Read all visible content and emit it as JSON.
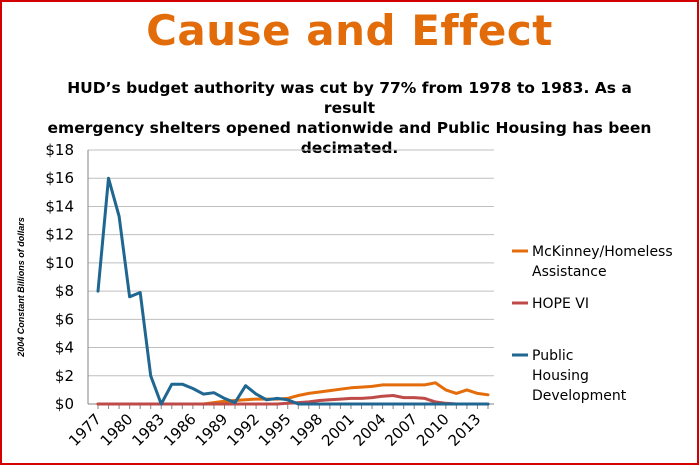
{
  "slide": {
    "title": "Cause and Effect",
    "subtitle_lines": [
      "HUD’s budget authority was cut by 77% from 1978 to 1983.  As a result",
      "emergency shelters opened nationwide and Public Housing has been",
      "decimated."
    ]
  },
  "chart_data": {
    "type": "line",
    "title": "",
    "xlabel": "",
    "ylabel": "2004 Constant Billions of dollars",
    "x": [
      1977,
      1978,
      1979,
      1980,
      1981,
      1982,
      1983,
      1984,
      1985,
      1986,
      1987,
      1988,
      1989,
      1990,
      1991,
      1992,
      1993,
      1994,
      1995,
      1996,
      1997,
      1998,
      1999,
      2000,
      2001,
      2002,
      2003,
      2004,
      2005,
      2006,
      2007,
      2008,
      2009,
      2010,
      2011,
      2012,
      2013,
      2014
    ],
    "xticks": [
      1977,
      1980,
      1983,
      1986,
      1989,
      1992,
      1995,
      1998,
      2001,
      2004,
      2007,
      2010,
      2013
    ],
    "ylim": [
      0,
      18
    ],
    "yticks": [
      0,
      2,
      4,
      6,
      8,
      10,
      12,
      14,
      16,
      18
    ],
    "ytick_labels": [
      "$0",
      "$2",
      "$4",
      "$6",
      "$8",
      "$10",
      "$12",
      "$14",
      "$16",
      "$18"
    ],
    "grid": "horizontal",
    "legend_position": "right",
    "series": [
      {
        "name": "McKinney/Homeless Assistance",
        "legend_lines": [
          "McKinney/Homeless",
          "Assistance"
        ],
        "color": "#e46c0a",
        "values": [
          0,
          0,
          0,
          0,
          0,
          0,
          0,
          0,
          0,
          0,
          0,
          0.1,
          0.2,
          0.25,
          0.3,
          0.35,
          0.35,
          0.35,
          0.4,
          0.6,
          0.75,
          0.85,
          0.95,
          1.05,
          1.15,
          1.2,
          1.25,
          1.35,
          1.35,
          1.35,
          1.35,
          1.35,
          1.5,
          1.0,
          0.75,
          1.0,
          0.75,
          0.65
        ]
      },
      {
        "name": "HOPE VI",
        "legend_lines": [
          "HOPE VI"
        ],
        "color": "#be4b48",
        "values": [
          0,
          0,
          0,
          0,
          0,
          0,
          0,
          0,
          0,
          0,
          0,
          0,
          0,
          0,
          0,
          0,
          0,
          0,
          0.05,
          0.1,
          0.15,
          0.25,
          0.3,
          0.35,
          0.4,
          0.4,
          0.45,
          0.55,
          0.6,
          0.45,
          0.45,
          0.4,
          0.15,
          0.05,
          0,
          0,
          0,
          0
        ]
      },
      {
        "name": "Public Housing Development",
        "legend_lines": [
          "Public",
          "Housing",
          "Development"
        ],
        "color": "#1f6690",
        "values": [
          8,
          16,
          13.3,
          7.6,
          7.9,
          2,
          0,
          1.4,
          1.4,
          1.1,
          0.7,
          0.8,
          0.4,
          0.1,
          1.3,
          0.7,
          0.3,
          0.4,
          0.3,
          0,
          0,
          0,
          0,
          0,
          0,
          0,
          0,
          0,
          0,
          0,
          0,
          0,
          0,
          0,
          0,
          0,
          0,
          0
        ]
      }
    ]
  }
}
